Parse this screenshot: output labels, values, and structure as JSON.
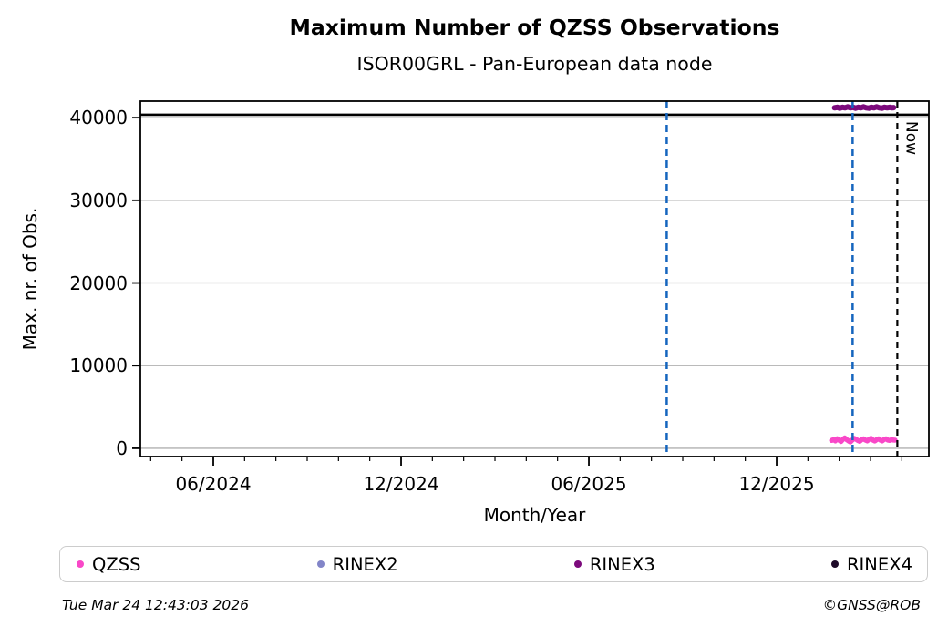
{
  "title": "Maximum Number of QZSS Observations",
  "subtitle": "ISOR00GRL - Pan-European data node",
  "footer": {
    "timestamp": "Tue Mar 24 12:43:03 2026",
    "credit": "©GNSS@ROB"
  },
  "legend": {
    "items": [
      {
        "label": "QZSS",
        "color": "#f948c8"
      },
      {
        "label": "RINEX2",
        "color": "#8285c8"
      },
      {
        "label": "RINEX3",
        "color": "#7c0a7c"
      },
      {
        "label": "RINEX4",
        "color": "#1e0a28"
      }
    ]
  },
  "chart_data": {
    "type": "line",
    "title": "Maximum Number of QZSS Observations",
    "subtitle": "ISOR00GRL - Pan-European data node",
    "xlabel": "Month/Year",
    "ylabel": "Max. nr. of Obs.",
    "xlim": [
      2024.2225,
      2026.322
    ],
    "ylim": [
      -1000,
      42000
    ],
    "grid": "horizontal",
    "grid_color": "#b0b0b0",
    "frame_color": "#000000",
    "xticks": [
      {
        "value": 2024.4167,
        "label": "06/2024"
      },
      {
        "value": 2024.9167,
        "label": "12/2024"
      },
      {
        "value": 2025.4167,
        "label": "06/2025"
      },
      {
        "value": 2025.9167,
        "label": "12/2025"
      }
    ],
    "minor_xticks": [
      2024.25,
      2024.3333,
      2024.5,
      2024.5833,
      2024.6667,
      2024.75,
      2024.8333,
      2025.0,
      2025.0833,
      2025.1667,
      2025.25,
      2025.3333,
      2025.5,
      2025.5833,
      2025.6667,
      2025.75,
      2025.8333,
      2026.0,
      2026.0833,
      2026.1667,
      2026.25
    ],
    "yticks": [
      {
        "value": 0,
        "label": "0"
      },
      {
        "value": 10000,
        "label": "10000"
      },
      {
        "value": 20000,
        "label": "20000"
      },
      {
        "value": 30000,
        "label": "30000"
      },
      {
        "value": 40000,
        "label": "40000"
      }
    ],
    "reference_line": {
      "value": 40350,
      "color": "#000000",
      "style": "solid",
      "width": 2.6
    },
    "event_lines": [
      {
        "x": 2025.624,
        "color": "#1565be",
        "style": "dashed"
      },
      {
        "x": 2026.119,
        "color": "#1565be",
        "style": "dashed"
      }
    ],
    "now_line": {
      "x": 2026.238,
      "label": "Now",
      "color": "#000000",
      "style": "dashed"
    },
    "series": [
      {
        "name": "QZSS",
        "color": "#f948c8",
        "line_width": 5.5,
        "points": [
          [
            2026.063,
            950
          ],
          [
            2026.068,
            1050
          ],
          [
            2026.073,
            900
          ],
          [
            2026.078,
            1150
          ],
          [
            2026.083,
            1000
          ],
          [
            2026.088,
            820
          ],
          [
            2026.093,
            1100
          ],
          [
            2026.098,
            1250
          ],
          [
            2026.103,
            1050
          ],
          [
            2026.108,
            900
          ],
          [
            2026.113,
            780
          ],
          [
            2026.118,
            1000
          ],
          [
            2026.123,
            1200
          ],
          [
            2026.128,
            1100
          ],
          [
            2026.133,
            950
          ],
          [
            2026.138,
            850
          ],
          [
            2026.143,
            1050
          ],
          [
            2026.148,
            1150
          ],
          [
            2026.153,
            1000
          ],
          [
            2026.158,
            900
          ],
          [
            2026.163,
            1100
          ],
          [
            2026.168,
            1200
          ],
          [
            2026.173,
            1000
          ],
          [
            2026.178,
            880
          ],
          [
            2026.183,
            1050
          ],
          [
            2026.188,
            1150
          ],
          [
            2026.193,
            980
          ],
          [
            2026.198,
            900
          ],
          [
            2026.203,
            1080
          ],
          [
            2026.208,
            1150
          ],
          [
            2026.213,
            1000
          ],
          [
            2026.218,
            950
          ],
          [
            2026.223,
            1050
          ],
          [
            2026.228,
            1000
          ],
          [
            2026.232,
            980
          ]
        ]
      },
      {
        "name": "RINEX2",
        "color": "#8285c8",
        "line_width": 5.5,
        "points": []
      },
      {
        "name": "RINEX3",
        "color": "#7c0a7c",
        "line_width": 6,
        "points": [
          [
            2026.071,
            41200
          ],
          [
            2026.078,
            41250
          ],
          [
            2026.085,
            41150
          ],
          [
            2026.092,
            41250
          ],
          [
            2026.099,
            41200
          ],
          [
            2026.106,
            41300
          ],
          [
            2026.113,
            41200
          ],
          [
            2026.12,
            41250
          ],
          [
            2026.127,
            41150
          ],
          [
            2026.134,
            41250
          ],
          [
            2026.141,
            41200
          ],
          [
            2026.148,
            41300
          ],
          [
            2026.155,
            41200
          ],
          [
            2026.162,
            41150
          ],
          [
            2026.169,
            41250
          ],
          [
            2026.176,
            41200
          ],
          [
            2026.183,
            41300
          ],
          [
            2026.19,
            41200
          ],
          [
            2026.197,
            41150
          ],
          [
            2026.204,
            41250
          ],
          [
            2026.211,
            41200
          ],
          [
            2026.218,
            41250
          ],
          [
            2026.224,
            41200
          ],
          [
            2026.228,
            41220
          ]
        ]
      },
      {
        "name": "RINEX4",
        "color": "#1e0a28",
        "line_width": 5.5,
        "points": []
      }
    ]
  }
}
